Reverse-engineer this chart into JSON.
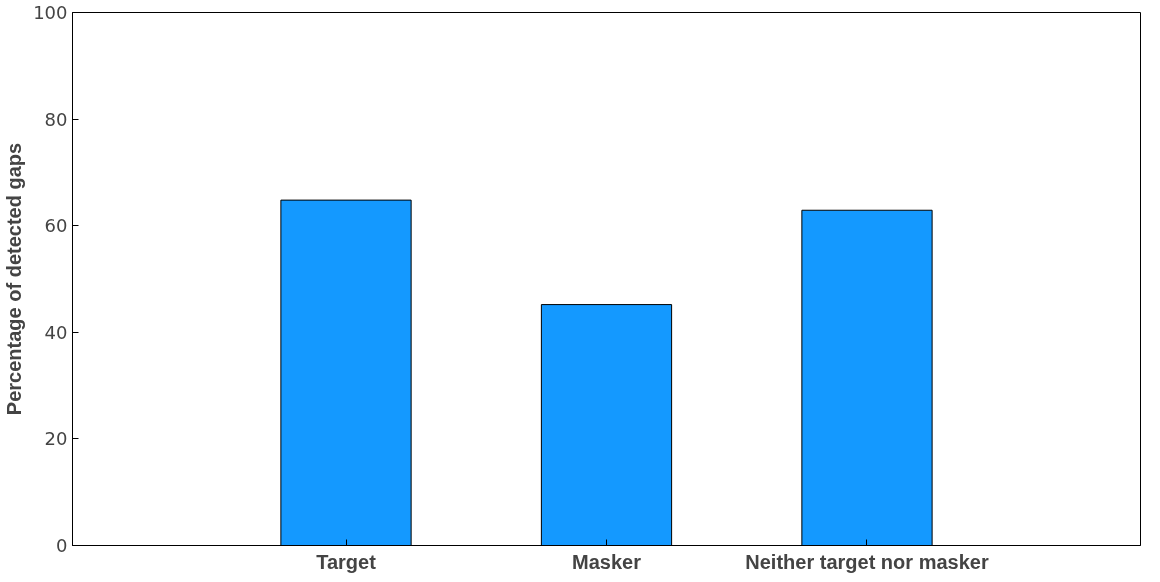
{
  "chart_data": {
    "type": "bar",
    "ylabel": "Percentage of detected gaps",
    "categories": [
      "Target",
      "Masker",
      "Neither target nor masker"
    ],
    "values": [
      64.8,
      45.2,
      62.9
    ],
    "color": "#1499ff",
    "ylim": [
      0,
      100
    ],
    "yticks": [
      0,
      20,
      40,
      60,
      80,
      100
    ],
    "grid": false
  }
}
